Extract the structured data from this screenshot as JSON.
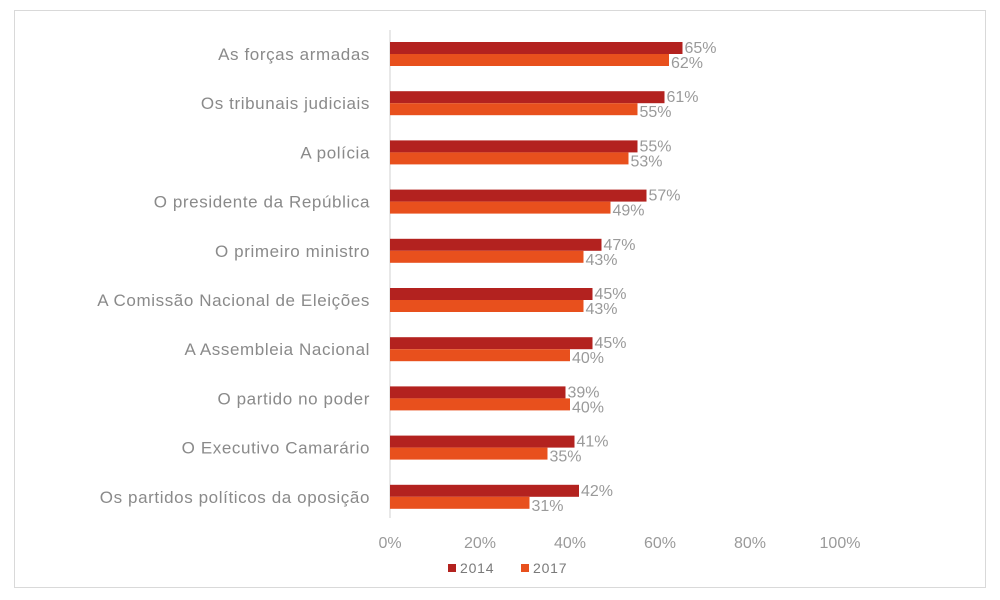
{
  "chart_data": {
    "type": "bar",
    "orientation": "horizontal",
    "categories": [
      "As forças armadas",
      "Os tribunais judiciais",
      "A polícia",
      "O presidente da República",
      "O primeiro ministro",
      "A Comissão Nacional de Eleições",
      "A Assembleia Nacional",
      "O partido no poder",
      "O Executivo Camarário",
      "Os partidos políticos da oposição"
    ],
    "series": [
      {
        "name": "2014",
        "color": "#b3221f",
        "values": [
          65,
          61,
          55,
          57,
          47,
          45,
          45,
          39,
          41,
          42
        ],
        "labels": [
          "65%",
          "61%",
          "55%",
          "57%",
          "47%",
          "45%",
          "45%",
          "39%",
          "41%",
          "42%"
        ]
      },
      {
        "name": "2017",
        "color": "#e8501d",
        "values": [
          62,
          55,
          53,
          49,
          43,
          43,
          40,
          40,
          35,
          31
        ],
        "labels": [
          "62%",
          "55%",
          "53%",
          "49%",
          "43%",
          "43%",
          "40%",
          "40%",
          "35%",
          "31%"
        ]
      }
    ],
    "xlim": [
      0,
      100
    ],
    "ticks": [
      0,
      20,
      40,
      60,
      80,
      100
    ],
    "tick_labels": [
      "0%",
      "20%",
      "40%",
      "60%",
      "80%",
      "100%"
    ],
    "title": "",
    "xlabel": "",
    "ylabel": "",
    "grid": false,
    "legend": "bottom"
  }
}
